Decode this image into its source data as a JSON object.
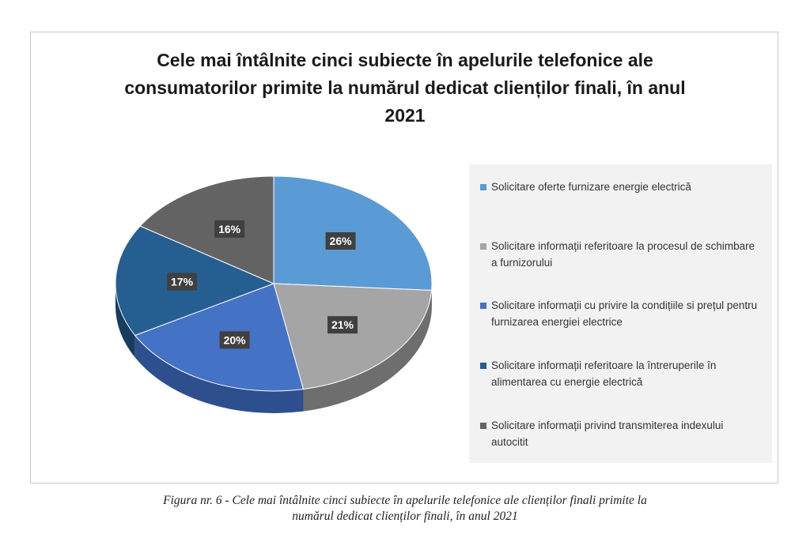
{
  "chart_data": {
    "type": "pie",
    "style": "3d",
    "title": "Cele mai întâlnite cinci subiecte în apelurile telefonice ale consumatorilor primite la numărul dedicat clienților finali, în anul 2021",
    "categories": [
      "Solicitare oferte furnizare energie electrică",
      "Solicitare informații referitoare la procesul de schimbare a furnizorului",
      "Solicitare informații cu privire la condițiile si prețul pentru furnizarea energiei electrice",
      "Solicitare informații referitoare la întreruperile în alimentarea cu energie electrică",
      "Solicitare informații privind transmiterea indexului autocitit"
    ],
    "values": [
      26,
      21,
      20,
      17,
      16
    ],
    "labels": [
      "26%",
      "21%",
      "20%",
      "17%",
      "16%"
    ],
    "unit": "%",
    "colors": [
      "#5b9bd5",
      "#a5a5a5",
      "#4472c4",
      "#255e91",
      "#636363"
    ],
    "side_colors": [
      "#3f6f9a",
      "#6e6e6e",
      "#2d4f8e",
      "#173c5e",
      "#3a3a3a"
    ],
    "legend_position": "right"
  },
  "caption": {
    "line1": "Figura nr. 6 - Cele mai întâlnite cinci subiecte în apelurile telefonice ale clienților finali primite la",
    "line2": "numărul dedicat clienților finali, în anul 2021"
  }
}
